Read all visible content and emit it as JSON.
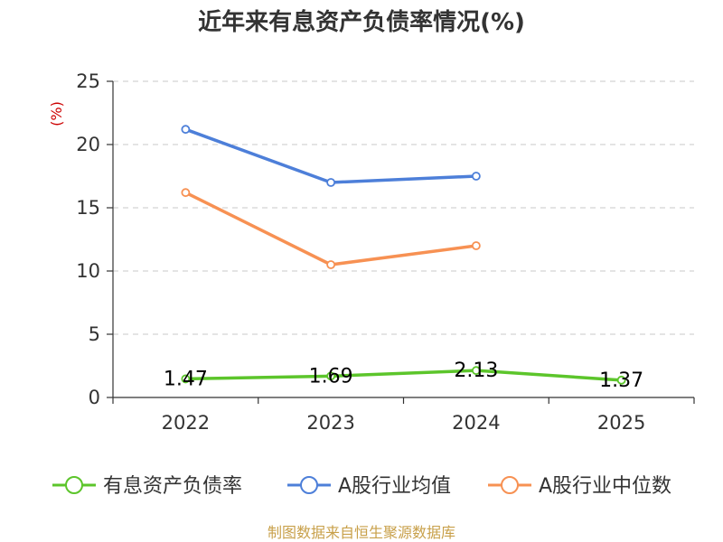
{
  "chart_data": {
    "type": "line",
    "title": "近年来有息资产负债率情况(%)",
    "unit_label": "(%)",
    "categories": [
      "2022",
      "2023",
      "2024",
      "2025"
    ],
    "ylim": [
      0,
      25
    ],
    "yticks": [
      0,
      5,
      10,
      15,
      20,
      25
    ],
    "grid": true,
    "legend_position": "bottom",
    "series": [
      {
        "name": "有息资产负债率",
        "color": "#5cc52b",
        "values": [
          1.47,
          1.69,
          2.13,
          1.37
        ],
        "labels": [
          "1.47",
          "1.69",
          "2.13",
          "1.37"
        ]
      },
      {
        "name": "A股行业均值",
        "color": "#4d7fd9",
        "values": [
          21.2,
          17.0,
          17.5,
          null
        ]
      },
      {
        "name": "A股行业中位数",
        "color": "#f79153",
        "values": [
          16.2,
          10.5,
          12.0,
          null
        ]
      }
    ],
    "source": "制图数据来自恒生聚源数据库"
  }
}
